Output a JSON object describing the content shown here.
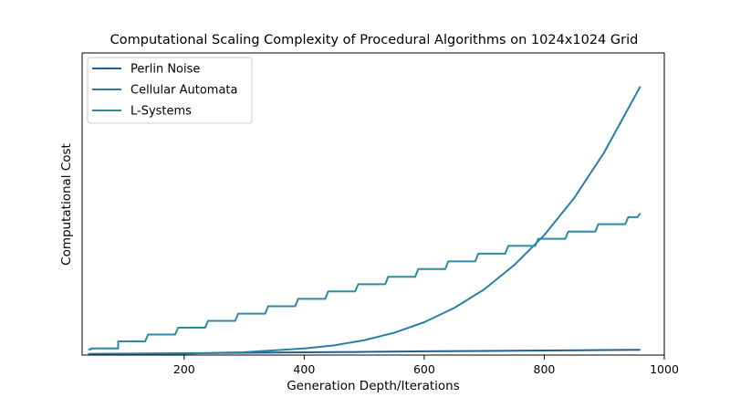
{
  "chart_data": {
    "type": "line",
    "title": "Computational Scaling Complexity of Procedural Algorithms on 1024x1024 Grid",
    "xlabel": "Generation Depth/Iterations",
    "ylabel": "Computational Cost",
    "xlim": [
      30,
      1000
    ],
    "ylim": [
      0,
      100
    ],
    "xticks": [
      200,
      400,
      600,
      800,
      1000
    ],
    "yticks_visible": false,
    "grid": false,
    "legend_position": "top-left",
    "series": [
      {
        "name": "Perlin Noise",
        "color": "#1f5f94",
        "points": [
          [
            40,
            0.4
          ],
          [
            100,
            0.5
          ],
          [
            200,
            0.65
          ],
          [
            300,
            0.8
          ],
          [
            400,
            0.95
          ],
          [
            500,
            1.1
          ],
          [
            600,
            1.3
          ],
          [
            700,
            1.45
          ],
          [
            800,
            1.6
          ],
          [
            900,
            1.75
          ],
          [
            960,
            1.85
          ]
        ]
      },
      {
        "name": "Cellular Automata",
        "color": "#2a7fa3",
        "points": [
          [
            40,
            0.2
          ],
          [
            100,
            0.3
          ],
          [
            200,
            0.5
          ],
          [
            300,
            1.0
          ],
          [
            400,
            2.3
          ],
          [
            450,
            3.4
          ],
          [
            500,
            5.2
          ],
          [
            550,
            7.8
          ],
          [
            600,
            11.5
          ],
          [
            650,
            16.5
          ],
          [
            700,
            23.0
          ],
          [
            750,
            31.5
          ],
          [
            800,
            42.0
          ],
          [
            850,
            55.0
          ],
          [
            900,
            71.0
          ],
          [
            960,
            94.0
          ]
        ]
      },
      {
        "name": "L-Systems",
        "color": "#2d8aa0",
        "points": [
          [
            40,
            2.0
          ],
          [
            45,
            2.0
          ],
          [
            45,
            2.3
          ],
          [
            90,
            2.3
          ],
          [
            90,
            4.8
          ],
          [
            135,
            4.8
          ],
          [
            140,
            7.2
          ],
          [
            185,
            7.2
          ],
          [
            190,
            9.6
          ],
          [
            235,
            9.6
          ],
          [
            240,
            12.0
          ],
          [
            285,
            12.0
          ],
          [
            290,
            14.5
          ],
          [
            335,
            14.5
          ],
          [
            340,
            17.1
          ],
          [
            385,
            17.1
          ],
          [
            390,
            19.7
          ],
          [
            435,
            19.7
          ],
          [
            440,
            22.3
          ],
          [
            485,
            22.3
          ],
          [
            490,
            24.8
          ],
          [
            535,
            24.8
          ],
          [
            540,
            27.4
          ],
          [
            585,
            27.4
          ],
          [
            590,
            30.1
          ],
          [
            635,
            30.1
          ],
          [
            640,
            32.8
          ],
          [
            685,
            32.8
          ],
          [
            690,
            35.5
          ],
          [
            735,
            35.5
          ],
          [
            740,
            38.2
          ],
          [
            785,
            38.2
          ],
          [
            790,
            40.7
          ],
          [
            835,
            40.7
          ],
          [
            840,
            43.2
          ],
          [
            885,
            43.2
          ],
          [
            890,
            45.8
          ],
          [
            935,
            45.8
          ],
          [
            940,
            48.3
          ],
          [
            955,
            48.3
          ],
          [
            960,
            49.6
          ]
        ]
      }
    ]
  }
}
